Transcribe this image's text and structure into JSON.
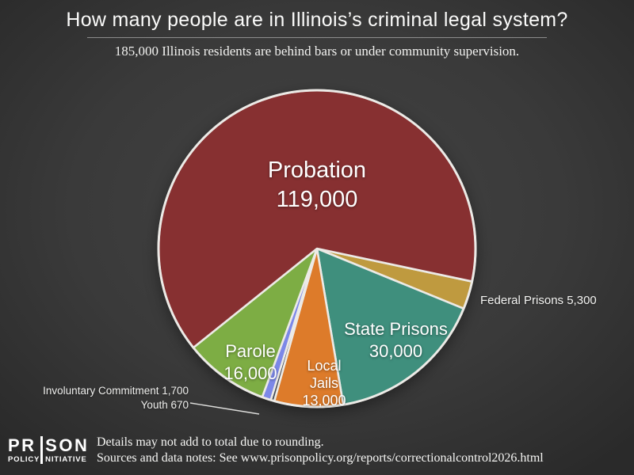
{
  "header": {
    "title": "How many people are in Illinois’s criminal legal system?",
    "subtitle": "185,000 Illinois residents are behind bars or under community supervision."
  },
  "chart_data": {
    "type": "pie",
    "title": "How many people are in Illinois’s criminal legal system?",
    "subtitle": "185,000 Illinois residents are behind bars or under community supervision.",
    "start_angle_deg": 12,
    "angle_convention": "degrees clockwise from +x (east), screen coordinates",
    "slices": [
      {
        "name": "Federal Prisons",
        "value": 5300,
        "color": "#bf9a3f"
      },
      {
        "name": "State Prisons",
        "value": 30000,
        "color": "#3f8f7d"
      },
      {
        "name": "Local Jails",
        "value": 13000,
        "color": "#dd7b2a"
      },
      {
        "name": "Youth",
        "value": 670,
        "color": "#3e4653"
      },
      {
        "name": "Involuntary Commitment",
        "value": 1700,
        "color": "#7c88e8"
      },
      {
        "name": "Parole",
        "value": 16000,
        "color": "#7dad44"
      },
      {
        "name": "Probation",
        "value": 119000,
        "color": "#873031"
      }
    ],
    "border_color": "#eceae6",
    "background_color": "#3a3a3a",
    "legend_position": "labels on and beside slices"
  },
  "labels": {
    "probation": {
      "line1": "Probation",
      "line2": "119,000"
    },
    "parole": {
      "line1": "Parole",
      "line2": "16,000"
    },
    "jails": {
      "line1": "Local",
      "line2": "Jails",
      "line3": "13,000"
    },
    "state": {
      "line1": "State Prisons",
      "line2": "30,000"
    },
    "federal": "Federal Prisons 5,300",
    "involuntary": "Involuntary Commitment 1,700",
    "youth": "Youth 670"
  },
  "footer": {
    "logo": {
      "alt": "PRISON POLICY INITIATIVE",
      "big_left": "PR",
      "big_right": "SON",
      "small_left": "POLICY",
      "small_right": "NITIATIVE"
    },
    "note1": "Details may not add to total due to rounding.",
    "note2": "Sources and data notes: See www.prisonpolicy.org/reports/correctionalcontrol2026.html"
  }
}
